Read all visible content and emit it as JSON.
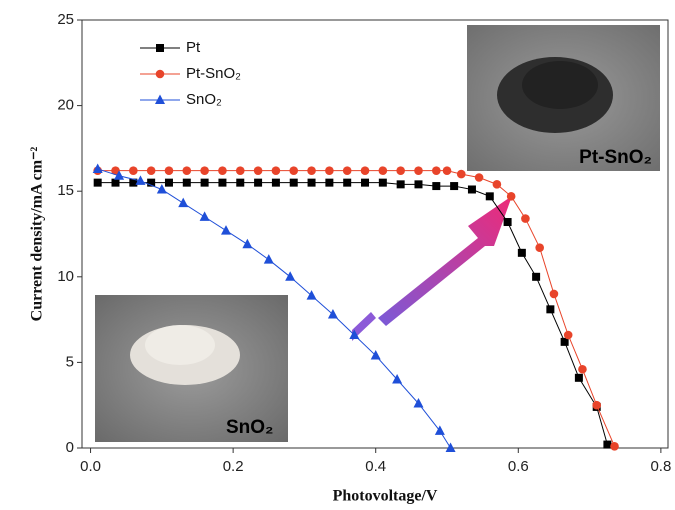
{
  "chart_data": {
    "type": "line",
    "xlabel": "Photovoltage/V",
    "ylabel": "Current density/mA cm⁻²",
    "xlim": [
      -0.012,
      0.81
    ],
    "ylim": [
      0,
      25
    ],
    "xticks": [
      {
        "value": 0,
        "label": "0.0"
      },
      0.2,
      0.4,
      0.6,
      0.8
    ],
    "yticks": [
      0,
      5,
      10,
      15,
      20,
      25
    ],
    "annotations": [
      "Pt-SnO₂",
      "SnO₂"
    ],
    "series": [
      {
        "name": "Pt",
        "color": "#000000",
        "marker": "square",
        "x": [
          0.01,
          0.035,
          0.06,
          0.085,
          0.11,
          0.135,
          0.16,
          0.185,
          0.21,
          0.235,
          0.26,
          0.285,
          0.31,
          0.335,
          0.36,
          0.385,
          0.41,
          0.435,
          0.46,
          0.485,
          0.51,
          0.535,
          0.56,
          0.585,
          0.605,
          0.625,
          0.645,
          0.665,
          0.685,
          0.71,
          0.725
        ],
        "values": [
          15.5,
          15.5,
          15.5,
          15.5,
          15.5,
          15.5,
          15.5,
          15.5,
          15.5,
          15.5,
          15.5,
          15.5,
          15.5,
          15.5,
          15.5,
          15.5,
          15.5,
          15.4,
          15.4,
          15.3,
          15.3,
          15.1,
          14.7,
          13.2,
          11.4,
          10.0,
          8.1,
          6.2,
          4.1,
          2.4,
          0.2
        ]
      },
      {
        "name": "Pt-SnO₂",
        "color": "#e8442a",
        "marker": "circle",
        "x": [
          0.01,
          0.035,
          0.06,
          0.085,
          0.11,
          0.135,
          0.16,
          0.185,
          0.21,
          0.235,
          0.26,
          0.285,
          0.31,
          0.335,
          0.36,
          0.385,
          0.41,
          0.435,
          0.46,
          0.485,
          0.5,
          0.52,
          0.545,
          0.57,
          0.59,
          0.61,
          0.63,
          0.65,
          0.67,
          0.69,
          0.71,
          0.735
        ],
        "values": [
          16.2,
          16.2,
          16.2,
          16.2,
          16.2,
          16.2,
          16.2,
          16.2,
          16.2,
          16.2,
          16.2,
          16.2,
          16.2,
          16.2,
          16.2,
          16.2,
          16.2,
          16.2,
          16.2,
          16.2,
          16.2,
          16.0,
          15.8,
          15.4,
          14.7,
          13.4,
          11.7,
          9.0,
          6.6,
          4.6,
          2.5,
          0.1
        ]
      },
      {
        "name": "SnO₂",
        "color": "#1f4fd8",
        "marker": "triangle",
        "x": [
          0.01,
          0.04,
          0.07,
          0.1,
          0.13,
          0.16,
          0.19,
          0.22,
          0.25,
          0.28,
          0.31,
          0.34,
          0.37,
          0.4,
          0.43,
          0.46,
          0.49,
          0.505
        ],
        "values": [
          16.3,
          15.9,
          15.6,
          15.1,
          14.3,
          13.5,
          12.7,
          11.9,
          11.0,
          10.0,
          8.9,
          7.8,
          6.6,
          5.4,
          4.0,
          2.6,
          1.0,
          0
        ]
      }
    ]
  }
}
